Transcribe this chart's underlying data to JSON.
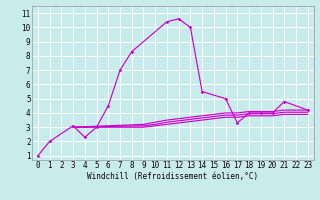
{
  "xlabel": "Windchill (Refroidissement éolien,°C)",
  "xlim": [
    -0.5,
    23.5
  ],
  "ylim": [
    0.7,
    11.5
  ],
  "xticks": [
    0,
    1,
    2,
    3,
    4,
    5,
    6,
    7,
    8,
    9,
    10,
    11,
    12,
    13,
    14,
    15,
    16,
    17,
    18,
    19,
    20,
    21,
    22,
    23
  ],
  "yticks": [
    1,
    2,
    3,
    4,
    5,
    6,
    7,
    8,
    9,
    10,
    11
  ],
  "bg_color": "#c8ecec",
  "grid_color": "#aad8d8",
  "line_color": "#cc00cc",
  "main_line_x": [
    0,
    1,
    3,
    4,
    5,
    6,
    7,
    8,
    11,
    12,
    13,
    14,
    16,
    17,
    18,
    19,
    20,
    21,
    23
  ],
  "main_line_y": [
    1.0,
    2.0,
    3.1,
    2.3,
    3.0,
    4.5,
    7.0,
    8.3,
    10.4,
    10.6,
    10.0,
    5.5,
    5.0,
    3.3,
    4.0,
    4.0,
    4.0,
    4.8,
    4.2
  ],
  "flat_lines": [
    {
      "x": [
        3,
        9,
        10,
        11,
        12,
        13,
        14,
        15,
        16,
        17,
        18,
        19,
        20,
        21,
        22,
        23
      ],
      "y": [
        3.0,
        3.2,
        3.35,
        3.5,
        3.6,
        3.7,
        3.8,
        3.9,
        4.0,
        4.0,
        4.1,
        4.1,
        4.1,
        4.2,
        4.2,
        4.2
      ]
    },
    {
      "x": [
        3,
        9,
        10,
        11,
        12,
        13,
        14,
        15,
        16,
        17,
        18,
        19,
        20,
        21,
        22,
        23
      ],
      "y": [
        3.0,
        3.1,
        3.2,
        3.35,
        3.45,
        3.55,
        3.65,
        3.75,
        3.85,
        3.85,
        3.95,
        3.95,
        3.95,
        4.05,
        4.05,
        4.05
      ]
    },
    {
      "x": [
        3,
        9,
        10,
        11,
        12,
        13,
        14,
        15,
        16,
        17,
        18,
        19,
        20,
        21,
        22,
        23
      ],
      "y": [
        3.0,
        3.0,
        3.1,
        3.2,
        3.3,
        3.4,
        3.5,
        3.6,
        3.7,
        3.7,
        3.8,
        3.8,
        3.8,
        3.9,
        3.9,
        3.9
      ]
    }
  ],
  "xlabel_fontsize": 5.5,
  "tick_fontsize": 5.5
}
